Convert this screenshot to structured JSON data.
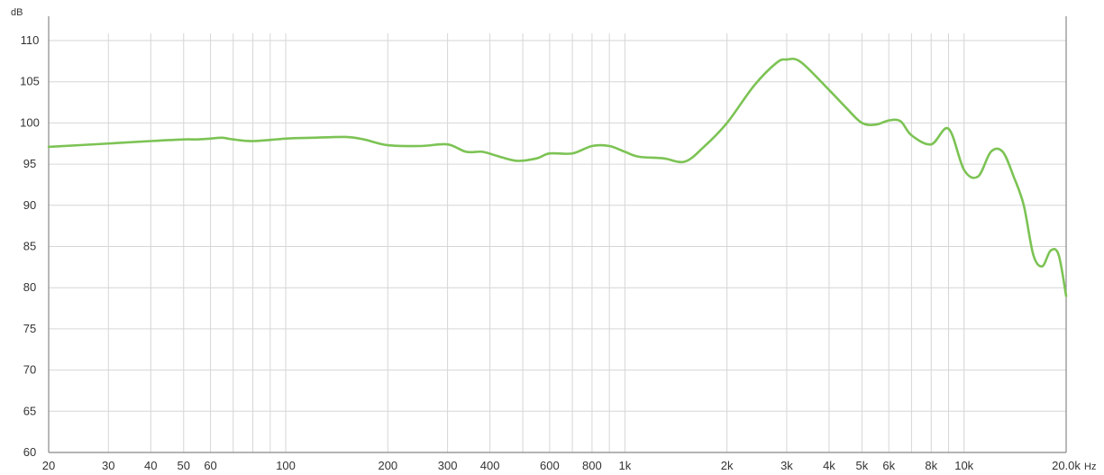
{
  "chart_data": {
    "type": "line",
    "ylabel": "dB",
    "xlabel": "Hz",
    "x_scale": "log",
    "xlim": [
      20,
      20000
    ],
    "ylim": [
      60,
      110
    ],
    "grid": true,
    "y_ticks": [
      60,
      65,
      70,
      75,
      80,
      85,
      90,
      95,
      100,
      105,
      110
    ],
    "x_ticks": [
      {
        "value": 20,
        "label": "20"
      },
      {
        "value": 30,
        "label": "30"
      },
      {
        "value": 40,
        "label": "40"
      },
      {
        "value": 50,
        "label": "50"
      },
      {
        "value": 60,
        "label": "60"
      },
      {
        "value": 100,
        "label": "100"
      },
      {
        "value": 200,
        "label": "200"
      },
      {
        "value": 300,
        "label": "300"
      },
      {
        "value": 400,
        "label": "400"
      },
      {
        "value": 600,
        "label": "600"
      },
      {
        "value": 800,
        "label": "800"
      },
      {
        "value": 1000,
        "label": "1k"
      },
      {
        "value": 2000,
        "label": "2k"
      },
      {
        "value": 3000,
        "label": "3k"
      },
      {
        "value": 4000,
        "label": "4k"
      },
      {
        "value": 5000,
        "label": "5k"
      },
      {
        "value": 6000,
        "label": "6k"
      },
      {
        "value": 8000,
        "label": "8k"
      },
      {
        "value": 10000,
        "label": "10k"
      },
      {
        "value": 20000,
        "label": "20.0k"
      }
    ],
    "x_gridlines": [
      20,
      30,
      40,
      50,
      60,
      70,
      80,
      90,
      100,
      200,
      300,
      400,
      500,
      600,
      700,
      800,
      900,
      1000,
      2000,
      3000,
      4000,
      5000,
      6000,
      7000,
      8000,
      9000,
      10000,
      20000
    ],
    "series": [
      {
        "color": "#7cc354",
        "x": [
          20,
          30,
          40,
          50,
          55,
          60,
          65,
          70,
          80,
          100,
          120,
          150,
          170,
          200,
          250,
          300,
          340,
          380,
          420,
          480,
          550,
          600,
          700,
          800,
          900,
          1000,
          1100,
          1300,
          1500,
          1700,
          2000,
          2400,
          2800,
          3000,
          3300,
          4000,
          4500,
          5000,
          5500,
          6000,
          6500,
          7000,
          8000,
          9000,
          10000,
          11000,
          12000,
          13000,
          14000,
          15000,
          16000,
          17000,
          18000,
          19000,
          20000
        ],
        "y": [
          97.1,
          97.5,
          97.8,
          98.0,
          98.0,
          98.1,
          98.2,
          98.0,
          97.8,
          98.1,
          98.2,
          98.3,
          98.0,
          97.3,
          97.2,
          97.4,
          96.5,
          96.5,
          96.0,
          95.4,
          95.7,
          96.3,
          96.3,
          97.2,
          97.2,
          96.5,
          95.9,
          95.7,
          95.3,
          97.0,
          100.0,
          104.5,
          107.3,
          107.7,
          107.4,
          104.0,
          101.8,
          100.0,
          99.8,
          100.3,
          100.2,
          98.5,
          97.4,
          99.3,
          94.3,
          93.5,
          96.5,
          96.5,
          93.5,
          90.0,
          84.0,
          82.6,
          84.5,
          84.0,
          79.0
        ]
      }
    ]
  }
}
